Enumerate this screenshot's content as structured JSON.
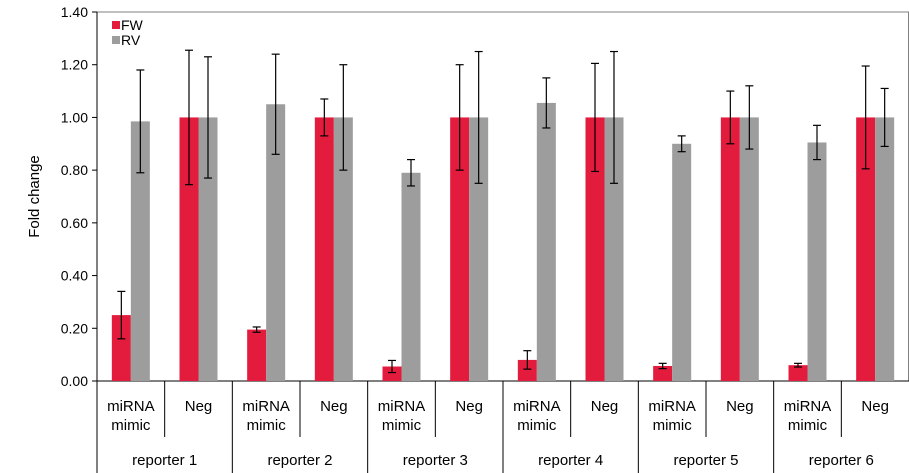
{
  "chart_data": {
    "type": "bar",
    "title": "",
    "xlabel": "",
    "ylabel": "Fold change",
    "ylim": [
      0,
      1.4
    ],
    "yticks": [
      "0.00",
      "0.20",
      "0.40",
      "0.60",
      "0.80",
      "1.00",
      "1.20",
      "1.40"
    ],
    "grid": false,
    "legend_position": "top-left",
    "groups": [
      "reporter 1",
      "reporter 2",
      "reporter 3",
      "reporter 4",
      "reporter 5",
      "reporter 6"
    ],
    "conditions": [
      {
        "line1": "miRNA",
        "line2": "mimic"
      },
      {
        "line1": "Neg",
        "line2": ""
      }
    ],
    "series": [
      {
        "name": "FW",
        "color": "#e31b3c",
        "values": [
          0.25,
          1.0,
          0.195,
          1.0,
          0.055,
          1.0,
          0.08,
          1.0,
          0.057,
          1.0,
          0.06,
          1.0
        ],
        "errors": [
          0.09,
          0.255,
          0.01,
          0.07,
          0.023,
          0.2,
          0.035,
          0.205,
          0.01,
          0.1,
          0.007,
          0.195
        ]
      },
      {
        "name": "RV",
        "color": "#9d9d9d",
        "values": [
          0.985,
          1.0,
          1.05,
          1.0,
          0.79,
          1.0,
          1.055,
          1.0,
          0.9,
          1.0,
          0.905,
          1.0
        ],
        "errors": [
          0.195,
          0.23,
          0.19,
          0.2,
          0.05,
          0.25,
          0.095,
          0.25,
          0.03,
          0.12,
          0.065,
          0.11
        ]
      }
    ]
  }
}
